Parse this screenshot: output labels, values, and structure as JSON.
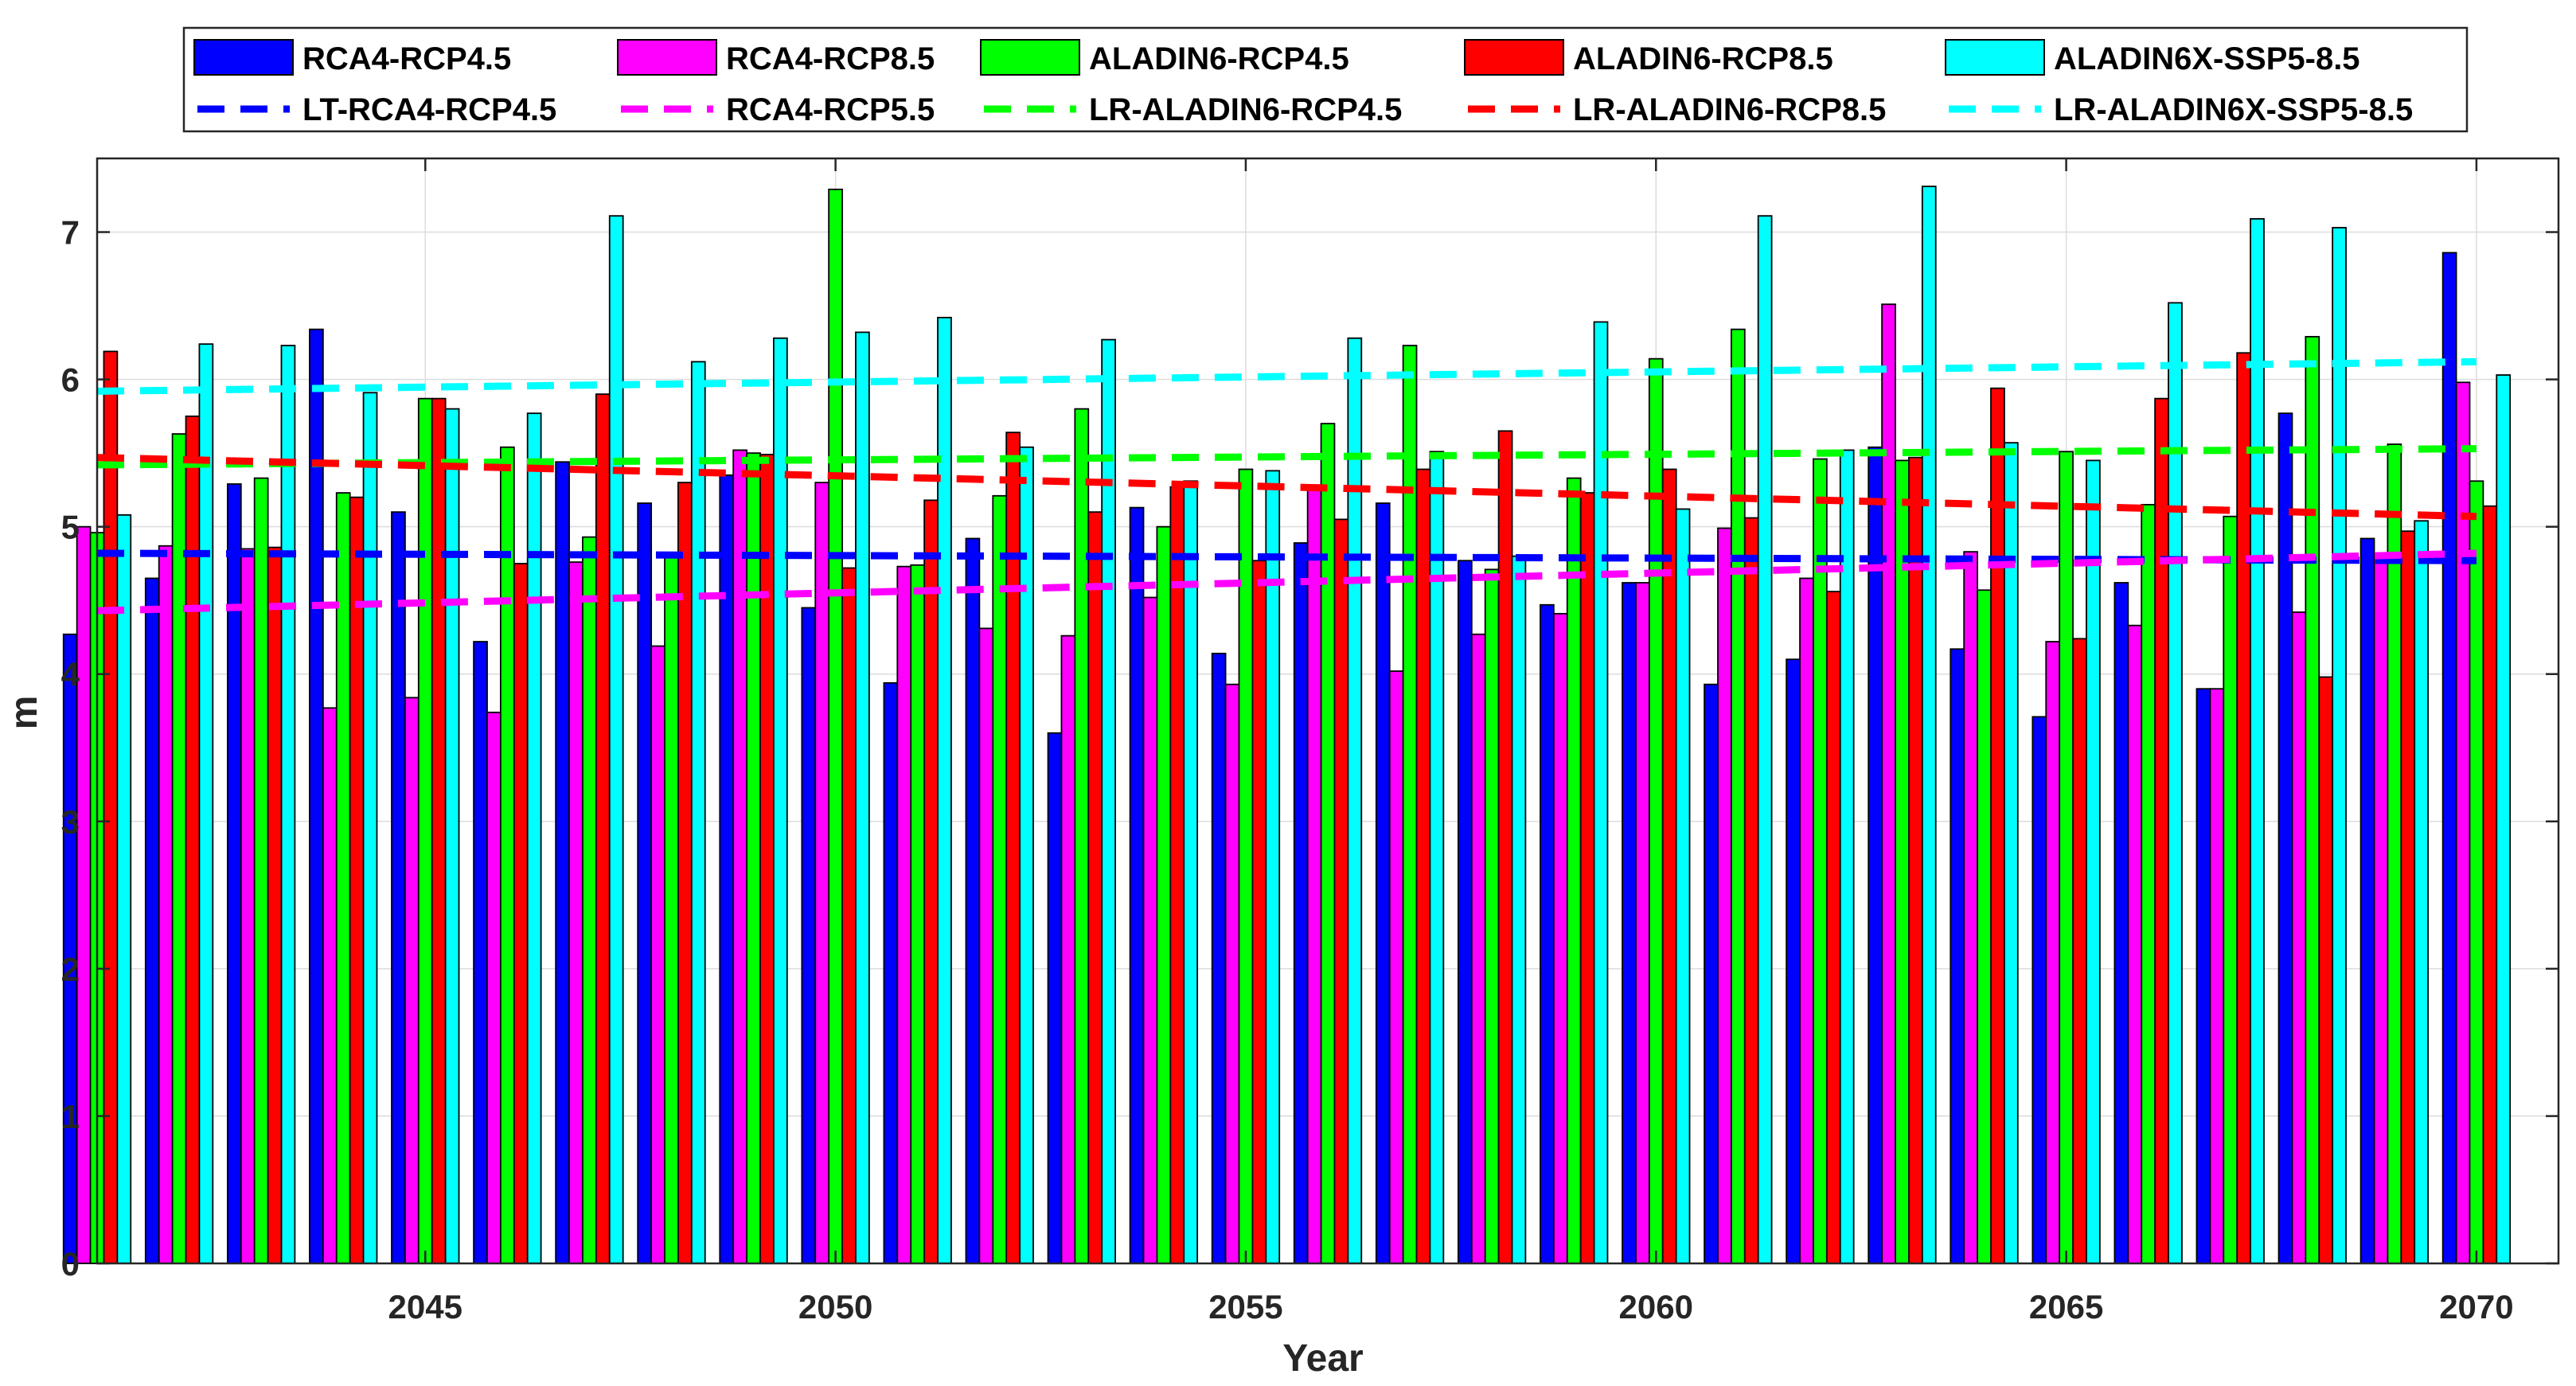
{
  "chart_data": {
    "type": "bar",
    "title": "",
    "xlabel": "Year",
    "ylabel": "m",
    "xlim": [
      2041,
      2071
    ],
    "ylim": [
      0,
      7.5
    ],
    "grid": true,
    "legend_position": "top-center",
    "x_tick_labels": [
      "2045",
      "2050",
      "2055",
      "2060",
      "2065",
      "2070"
    ],
    "x_tick_values": [
      2045,
      2050,
      2055,
      2060,
      2065,
      2070
    ],
    "y_tick_labels": [
      "0",
      "1",
      "2",
      "3",
      "4",
      "5",
      "6",
      "7"
    ],
    "y_tick_values": [
      0,
      1,
      2,
      3,
      4,
      5,
      6,
      7
    ],
    "categories": [
      2041,
      2042,
      2043,
      2044,
      2045,
      2046,
      2047,
      2048,
      2049,
      2050,
      2051,
      2052,
      2053,
      2054,
      2055,
      2056,
      2057,
      2058,
      2059,
      2060,
      2061,
      2062,
      2063,
      2064,
      2065,
      2066,
      2067,
      2068,
      2069,
      2070
    ],
    "series": [
      {
        "name": "RCA4-RCP4.5",
        "color": "#0000ff",
        "values": [
          4.27,
          4.65,
          5.29,
          6.34,
          5.1,
          4.22,
          5.44,
          5.16,
          5.35,
          4.45,
          3.94,
          4.92,
          3.6,
          5.13,
          4.14,
          4.89,
          5.16,
          4.77,
          4.47,
          4.62,
          3.93,
          4.1,
          5.54,
          4.17,
          3.71,
          4.62,
          3.9,
          5.77,
          4.92,
          6.86
        ]
      },
      {
        "name": "RCA4-RCP8.5",
        "color": "#ff00ff",
        "values": [
          5.0,
          4.87,
          4.85,
          3.77,
          3.84,
          3.74,
          4.76,
          4.19,
          5.52,
          5.3,
          4.73,
          4.31,
          4.26,
          4.52,
          3.93,
          5.25,
          4.02,
          4.27,
          4.41,
          4.62,
          4.99,
          4.65,
          6.51,
          4.83,
          4.22,
          4.33,
          3.9,
          4.42,
          4.79,
          5.98
        ]
      },
      {
        "name": "ALADIN6-RCP4.5",
        "color": "#00ff00",
        "values": [
          4.96,
          5.63,
          5.33,
          5.23,
          5.87,
          5.54,
          4.93,
          4.8,
          5.5,
          7.29,
          4.74,
          5.21,
          5.8,
          5.0,
          5.39,
          5.7,
          6.23,
          4.71,
          5.33,
          6.14,
          6.34,
          5.46,
          5.45,
          4.57,
          5.51,
          5.15,
          5.07,
          6.29,
          5.56,
          5.31
        ]
      },
      {
        "name": "ALADIN6-RCP8.5",
        "color": "#ff0000",
        "values": [
          6.19,
          5.75,
          4.86,
          5.2,
          5.87,
          4.75,
          5.9,
          5.3,
          5.49,
          4.72,
          5.18,
          5.64,
          5.1,
          5.27,
          4.77,
          5.05,
          5.39,
          5.65,
          5.23,
          5.39,
          5.06,
          4.56,
          5.47,
          5.94,
          4.24,
          5.87,
          6.18,
          3.98,
          4.97,
          5.14
        ]
      },
      {
        "name": "ALADIN6X-SSP5-8.5",
        "color": "#00ffff",
        "values": [
          5.08,
          6.24,
          6.23,
          5.91,
          5.8,
          5.77,
          7.11,
          6.12,
          6.28,
          6.32,
          6.42,
          5.54,
          6.27,
          5.31,
          5.38,
          6.28,
          5.51,
          4.8,
          6.39,
          5.12,
          7.11,
          5.52,
          7.31,
          5.57,
          5.45,
          6.52,
          7.09,
          7.03,
          5.04,
          6.03
        ]
      }
    ],
    "trend_lines": [
      {
        "name": "LT-RCA4-RCP4.5",
        "color": "#0000ff",
        "x": [
          2041,
          2070
        ],
        "y": [
          4.82,
          4.77
        ]
      },
      {
        "name": "RCA4-RCP5.5",
        "color": "#ff00ff",
        "x": [
          2041,
          2070
        ],
        "y": [
          4.43,
          4.82
        ]
      },
      {
        "name": "LR-ALADIN6-RCP4.5",
        "color": "#00ff00",
        "x": [
          2041,
          2070
        ],
        "y": [
          5.42,
          5.53
        ]
      },
      {
        "name": "LR-ALADIN6-RCP8.5",
        "color": "#ff0000",
        "x": [
          2041,
          2070
        ],
        "y": [
          5.47,
          5.07
        ]
      },
      {
        "name": "LR-ALADIN6X-SSP5-8.5",
        "color": "#00ffff",
        "x": [
          2041,
          2070
        ],
        "y": [
          5.92,
          6.12
        ]
      }
    ]
  }
}
